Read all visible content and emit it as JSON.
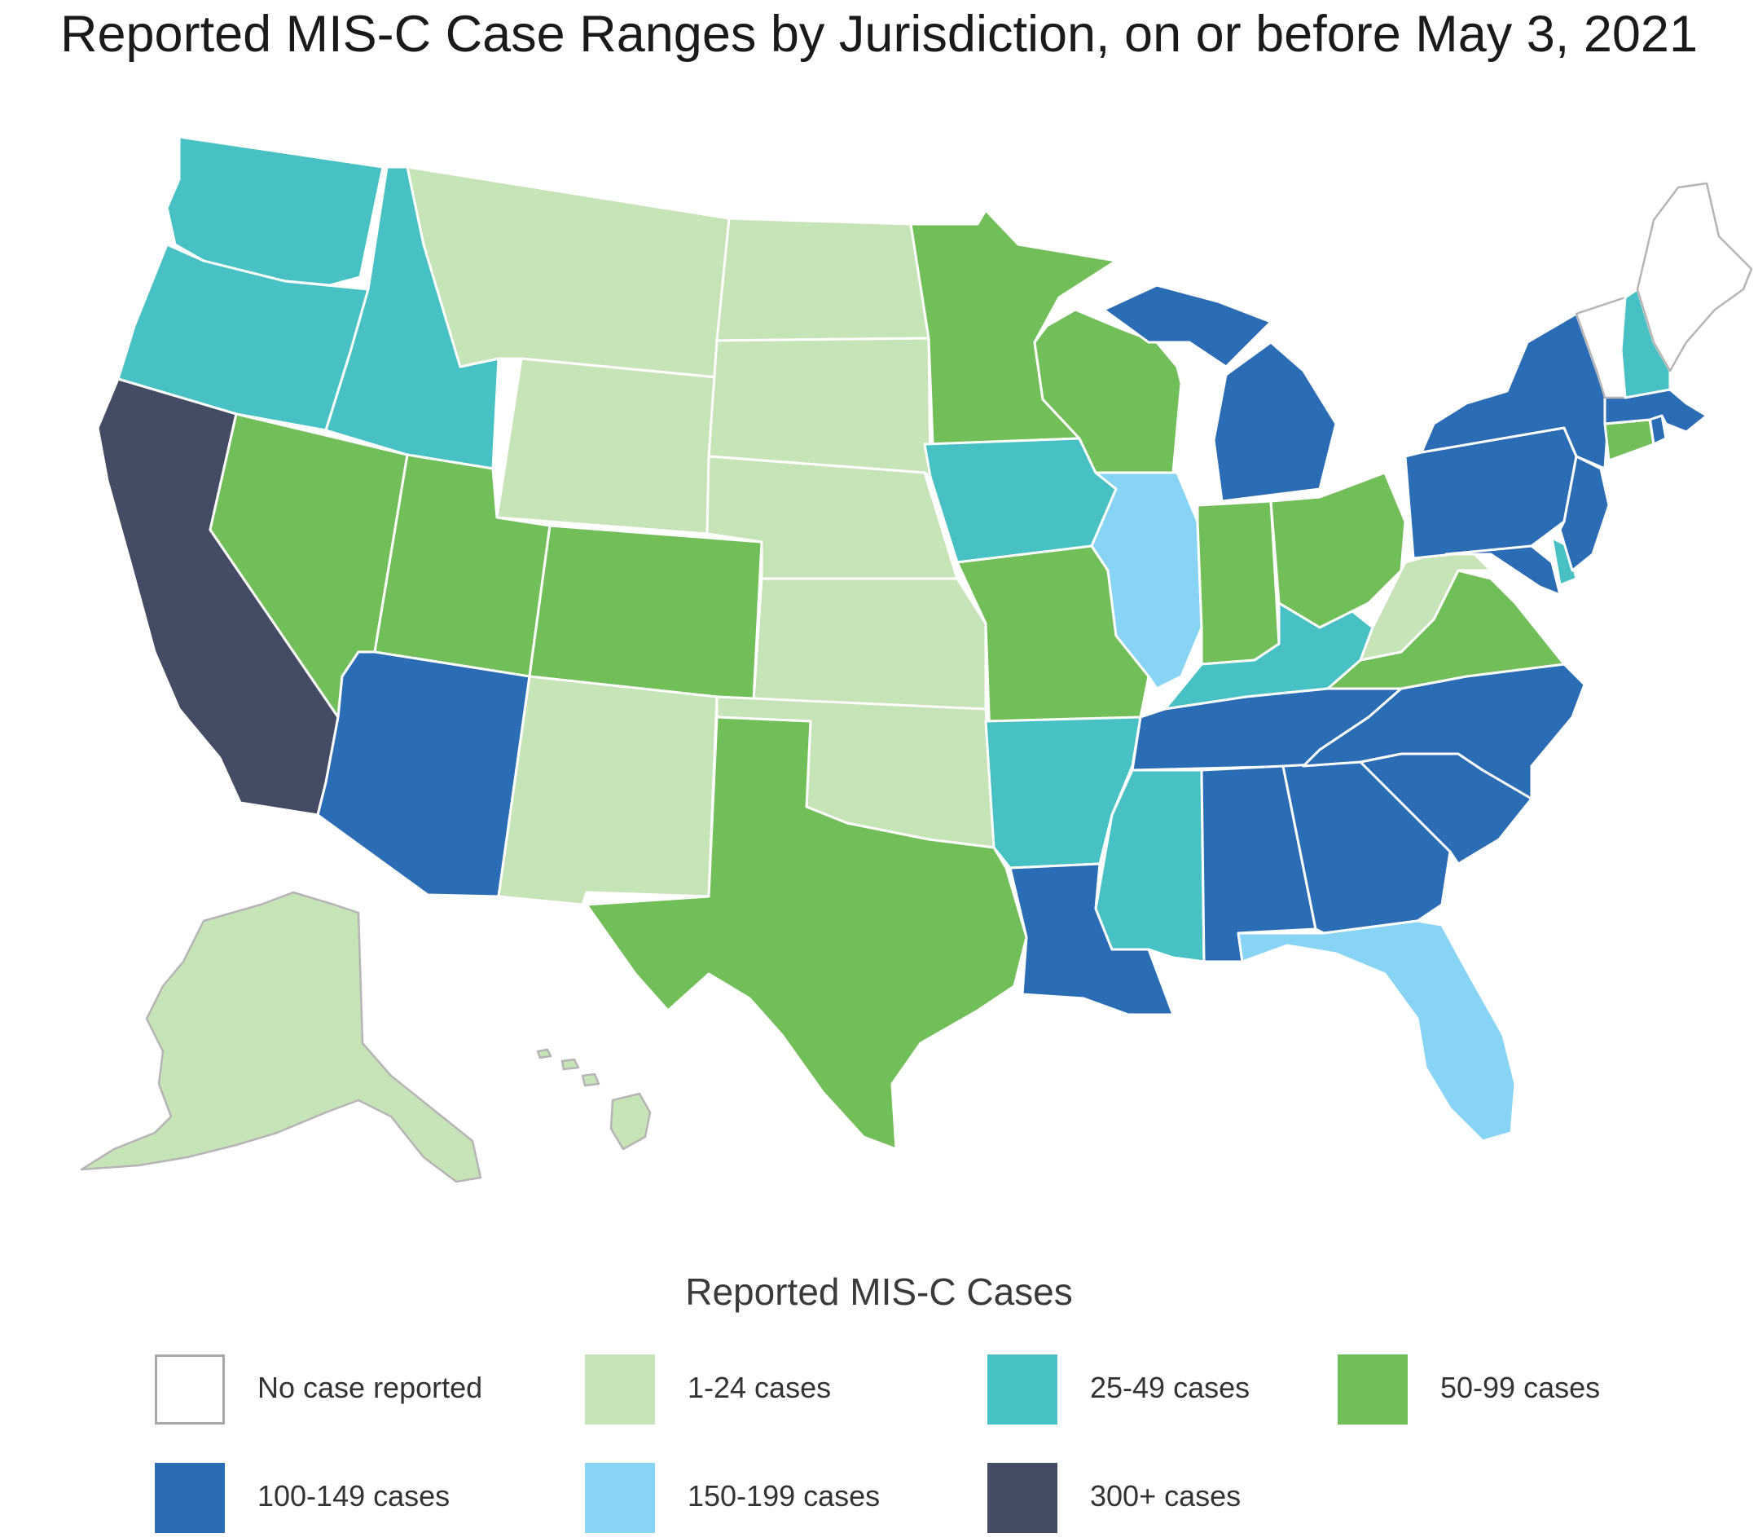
{
  "title": "Reported MIS-C Case Ranges by Jurisdiction, on or before May 3, 2021",
  "legend": {
    "title": "Reported MIS-C Cases",
    "items": [
      {
        "label": "No case reported",
        "color": "#ffffff",
        "border": "#a8a8a8"
      },
      {
        "label": "1-24 cases",
        "color": "#c7e3b8",
        "border": "#c7e3b8"
      },
      {
        "label": "25-49 cases",
        "color": "#48c1c4",
        "border": "#48c1c4"
      },
      {
        "label": "50-99 cases",
        "color": "#72bf5a",
        "border": "#72bf5a"
      },
      {
        "label": "100-149 cases",
        "color": "#2b6db5",
        "border": "#2b6db5"
      },
      {
        "label": "150-199 cases",
        "color": "#88d4f5",
        "border": "#88d4f5"
      },
      {
        "label": "300+ cases",
        "color": "#434c63",
        "border": "#434c63"
      }
    ]
  },
  "chart_data": {
    "type": "choropleth",
    "categories": [
      "No case reported",
      "1-24 cases",
      "25-49 cases",
      "50-99 cases",
      "100-149 cases",
      "150-199 cases",
      "300+ cases"
    ],
    "states": {
      "WA": "25-49 cases",
      "OR": "25-49 cases",
      "CA": "300+ cases",
      "NV": "50-99 cases",
      "ID": "25-49 cases",
      "MT": "1-24 cases",
      "WY": "1-24 cases",
      "UT": "50-99 cases",
      "AZ": "100-149 cases",
      "CO": "50-99 cases",
      "NM": "1-24 cases",
      "ND": "1-24 cases",
      "SD": "1-24 cases",
      "NE": "1-24 cases",
      "KS": "1-24 cases",
      "OK": "1-24 cases",
      "TX": "50-99 cases",
      "MN": "50-99 cases",
      "IA": "25-49 cases",
      "MO": "50-99 cases",
      "AR": "25-49 cases",
      "LA": "100-149 cases",
      "WI": "50-99 cases",
      "IL": "150-199 cases",
      "MI": "100-149 cases",
      "IN": "50-99 cases",
      "OH": "50-99 cases",
      "KY": "25-49 cases",
      "TN": "100-149 cases",
      "MS": "25-49 cases",
      "AL": "100-149 cases",
      "GA": "100-149 cases",
      "FL": "150-199 cases",
      "SC": "100-149 cases",
      "NC": "100-149 cases",
      "VA": "50-99 cases",
      "WV": "1-24 cases",
      "MD": "100-149 cases",
      "DE": "25-49 cases",
      "PA": "100-149 cases",
      "NJ": "100-149 cases",
      "NY": "100-149 cases",
      "CT": "50-99 cases",
      "RI": "100-149 cases",
      "MA": "100-149 cases",
      "VT": "No case reported",
      "NH": "25-49 cases",
      "ME": "No case reported",
      "AK": "1-24 cases",
      "HI": "1-24 cases"
    }
  }
}
